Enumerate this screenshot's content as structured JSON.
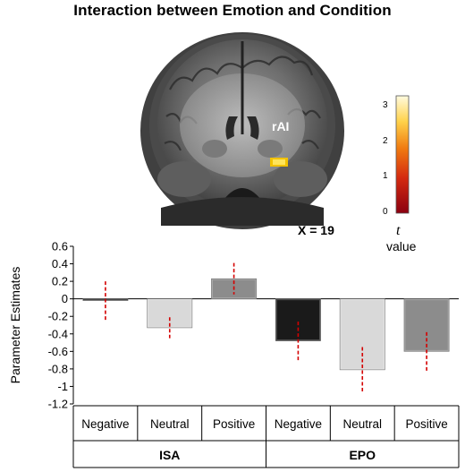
{
  "figure": {
    "title": "Interaction between Emotion and Condition"
  },
  "brain": {
    "region_label": "rAI",
    "slice_label": "X = 19",
    "colorbar": {
      "ticks": [
        "3",
        "2",
        "1",
        "0"
      ],
      "label_symbol": "t",
      "label_word": "value",
      "colors": [
        "#8b0010",
        "#d42a10",
        "#f07a10",
        "#ffd24a",
        "#fffbe0"
      ]
    }
  },
  "chart_data": {
    "type": "bar",
    "ylabel": "Parameter Estimates",
    "ylim": [
      -1.2,
      0.6
    ],
    "yticks": [
      "0.6",
      "0.4",
      "0.2",
      "0",
      "-0.2",
      "-0.4",
      "-0.6",
      "-0.8",
      "-1",
      "-1.2"
    ],
    "ytick_values": [
      0.6,
      0.4,
      0.2,
      0,
      -0.2,
      -0.4,
      -0.6,
      -0.8,
      -1,
      -1.2
    ],
    "categories": [
      "Negative",
      "Neutral",
      "Positive",
      "Negative",
      "Neutral",
      "Positive"
    ],
    "groups": [
      {
        "name": "ISA",
        "span": [
          0,
          2
        ]
      },
      {
        "name": "EPO",
        "span": [
          3,
          5
        ]
      }
    ],
    "values": [
      -0.02,
      -0.33,
      0.23,
      -0.48,
      -0.81,
      -0.6
    ],
    "errors": [
      0.22,
      0.12,
      0.18,
      0.22,
      0.26,
      0.22
    ],
    "bar_colors": [
      "#1a1a1a",
      "#d9d9d9",
      "#8c8c8c",
      "#1a1a1a",
      "#d9d9d9",
      "#8c8c8c"
    ],
    "error_color": "#d40000",
    "grid": false
  }
}
